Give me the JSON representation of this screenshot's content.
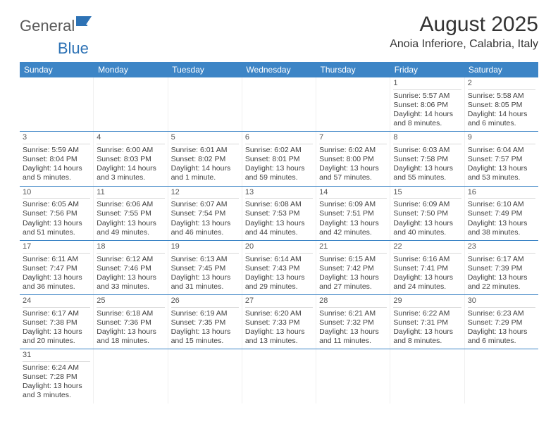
{
  "brand": {
    "part1": "General",
    "part2": "Blue"
  },
  "title": "August 2025",
  "location": "Anoia Inferiore, Calabria, Italy",
  "colors": {
    "header_bg": "#3d85c6",
    "header_text": "#ffffff",
    "row_border": "#3d85c6",
    "cell_border": "#f0f0f0",
    "daynum_border": "#d9d9d9",
    "text": "#424242",
    "brand_gray": "#5a5a5a",
    "brand_blue": "#2d72b5"
  },
  "weekdays": [
    "Sunday",
    "Monday",
    "Tuesday",
    "Wednesday",
    "Thursday",
    "Friday",
    "Saturday"
  ],
  "weeks": [
    [
      null,
      null,
      null,
      null,
      null,
      {
        "n": "1",
        "sr": "Sunrise: 5:57 AM",
        "ss": "Sunset: 8:06 PM",
        "d1": "Daylight: 14 hours",
        "d2": "and 8 minutes."
      },
      {
        "n": "2",
        "sr": "Sunrise: 5:58 AM",
        "ss": "Sunset: 8:05 PM",
        "d1": "Daylight: 14 hours",
        "d2": "and 6 minutes."
      }
    ],
    [
      {
        "n": "3",
        "sr": "Sunrise: 5:59 AM",
        "ss": "Sunset: 8:04 PM",
        "d1": "Daylight: 14 hours",
        "d2": "and 5 minutes."
      },
      {
        "n": "4",
        "sr": "Sunrise: 6:00 AM",
        "ss": "Sunset: 8:03 PM",
        "d1": "Daylight: 14 hours",
        "d2": "and 3 minutes."
      },
      {
        "n": "5",
        "sr": "Sunrise: 6:01 AM",
        "ss": "Sunset: 8:02 PM",
        "d1": "Daylight: 14 hours",
        "d2": "and 1 minute."
      },
      {
        "n": "6",
        "sr": "Sunrise: 6:02 AM",
        "ss": "Sunset: 8:01 PM",
        "d1": "Daylight: 13 hours",
        "d2": "and 59 minutes."
      },
      {
        "n": "7",
        "sr": "Sunrise: 6:02 AM",
        "ss": "Sunset: 8:00 PM",
        "d1": "Daylight: 13 hours",
        "d2": "and 57 minutes."
      },
      {
        "n": "8",
        "sr": "Sunrise: 6:03 AM",
        "ss": "Sunset: 7:58 PM",
        "d1": "Daylight: 13 hours",
        "d2": "and 55 minutes."
      },
      {
        "n": "9",
        "sr": "Sunrise: 6:04 AM",
        "ss": "Sunset: 7:57 PM",
        "d1": "Daylight: 13 hours",
        "d2": "and 53 minutes."
      }
    ],
    [
      {
        "n": "10",
        "sr": "Sunrise: 6:05 AM",
        "ss": "Sunset: 7:56 PM",
        "d1": "Daylight: 13 hours",
        "d2": "and 51 minutes."
      },
      {
        "n": "11",
        "sr": "Sunrise: 6:06 AM",
        "ss": "Sunset: 7:55 PM",
        "d1": "Daylight: 13 hours",
        "d2": "and 49 minutes."
      },
      {
        "n": "12",
        "sr": "Sunrise: 6:07 AM",
        "ss": "Sunset: 7:54 PM",
        "d1": "Daylight: 13 hours",
        "d2": "and 46 minutes."
      },
      {
        "n": "13",
        "sr": "Sunrise: 6:08 AM",
        "ss": "Sunset: 7:53 PM",
        "d1": "Daylight: 13 hours",
        "d2": "and 44 minutes."
      },
      {
        "n": "14",
        "sr": "Sunrise: 6:09 AM",
        "ss": "Sunset: 7:51 PM",
        "d1": "Daylight: 13 hours",
        "d2": "and 42 minutes."
      },
      {
        "n": "15",
        "sr": "Sunrise: 6:09 AM",
        "ss": "Sunset: 7:50 PM",
        "d1": "Daylight: 13 hours",
        "d2": "and 40 minutes."
      },
      {
        "n": "16",
        "sr": "Sunrise: 6:10 AM",
        "ss": "Sunset: 7:49 PM",
        "d1": "Daylight: 13 hours",
        "d2": "and 38 minutes."
      }
    ],
    [
      {
        "n": "17",
        "sr": "Sunrise: 6:11 AM",
        "ss": "Sunset: 7:47 PM",
        "d1": "Daylight: 13 hours",
        "d2": "and 36 minutes."
      },
      {
        "n": "18",
        "sr": "Sunrise: 6:12 AM",
        "ss": "Sunset: 7:46 PM",
        "d1": "Daylight: 13 hours",
        "d2": "and 33 minutes."
      },
      {
        "n": "19",
        "sr": "Sunrise: 6:13 AM",
        "ss": "Sunset: 7:45 PM",
        "d1": "Daylight: 13 hours",
        "d2": "and 31 minutes."
      },
      {
        "n": "20",
        "sr": "Sunrise: 6:14 AM",
        "ss": "Sunset: 7:43 PM",
        "d1": "Daylight: 13 hours",
        "d2": "and 29 minutes."
      },
      {
        "n": "21",
        "sr": "Sunrise: 6:15 AM",
        "ss": "Sunset: 7:42 PM",
        "d1": "Daylight: 13 hours",
        "d2": "and 27 minutes."
      },
      {
        "n": "22",
        "sr": "Sunrise: 6:16 AM",
        "ss": "Sunset: 7:41 PM",
        "d1": "Daylight: 13 hours",
        "d2": "and 24 minutes."
      },
      {
        "n": "23",
        "sr": "Sunrise: 6:17 AM",
        "ss": "Sunset: 7:39 PM",
        "d1": "Daylight: 13 hours",
        "d2": "and 22 minutes."
      }
    ],
    [
      {
        "n": "24",
        "sr": "Sunrise: 6:17 AM",
        "ss": "Sunset: 7:38 PM",
        "d1": "Daylight: 13 hours",
        "d2": "and 20 minutes."
      },
      {
        "n": "25",
        "sr": "Sunrise: 6:18 AM",
        "ss": "Sunset: 7:36 PM",
        "d1": "Daylight: 13 hours",
        "d2": "and 18 minutes."
      },
      {
        "n": "26",
        "sr": "Sunrise: 6:19 AM",
        "ss": "Sunset: 7:35 PM",
        "d1": "Daylight: 13 hours",
        "d2": "and 15 minutes."
      },
      {
        "n": "27",
        "sr": "Sunrise: 6:20 AM",
        "ss": "Sunset: 7:33 PM",
        "d1": "Daylight: 13 hours",
        "d2": "and 13 minutes."
      },
      {
        "n": "28",
        "sr": "Sunrise: 6:21 AM",
        "ss": "Sunset: 7:32 PM",
        "d1": "Daylight: 13 hours",
        "d2": "and 11 minutes."
      },
      {
        "n": "29",
        "sr": "Sunrise: 6:22 AM",
        "ss": "Sunset: 7:31 PM",
        "d1": "Daylight: 13 hours",
        "d2": "and 8 minutes."
      },
      {
        "n": "30",
        "sr": "Sunrise: 6:23 AM",
        "ss": "Sunset: 7:29 PM",
        "d1": "Daylight: 13 hours",
        "d2": "and 6 minutes."
      }
    ],
    [
      {
        "n": "31",
        "sr": "Sunrise: 6:24 AM",
        "ss": "Sunset: 7:28 PM",
        "d1": "Daylight: 13 hours",
        "d2": "and 3 minutes."
      },
      null,
      null,
      null,
      null,
      null,
      null
    ]
  ]
}
